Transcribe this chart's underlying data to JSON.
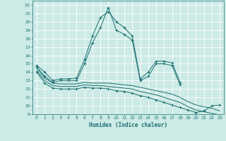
{
  "xlabel": "Humidex (Indice chaleur)",
  "xlim": [
    -0.5,
    23.5
  ],
  "ylim": [
    9,
    22.5
  ],
  "yticks": [
    9,
    10,
    11,
    12,
    13,
    14,
    15,
    16,
    17,
    18,
    19,
    20,
    21,
    22
  ],
  "xticks": [
    0,
    1,
    2,
    3,
    4,
    5,
    6,
    7,
    8,
    9,
    10,
    11,
    12,
    13,
    14,
    15,
    16,
    17,
    18,
    19,
    20,
    21,
    22,
    23
  ],
  "background_color": "#cceae6",
  "grid_color": "#ffffff",
  "line_color": "#1a7070",
  "series": [
    {
      "x": [
        0,
        1,
        2,
        3,
        4,
        5,
        6,
        7,
        8,
        9,
        10,
        11,
        12,
        13,
        14,
        15,
        16,
        17,
        18
      ],
      "y": [
        14.8,
        14.0,
        13.0,
        13.2,
        13.2,
        13.3,
        15.5,
        18.3,
        20.5,
        21.2,
        20.0,
        19.3,
        18.3,
        13.2,
        14.0,
        15.3,
        15.3,
        15.1,
        12.8
      ],
      "marker": "+"
    },
    {
      "x": [
        0,
        1,
        2,
        3,
        4,
        5,
        6,
        7,
        8,
        9,
        10,
        11,
        12,
        13,
        14,
        15,
        16,
        17,
        18
      ],
      "y": [
        14.6,
        13.5,
        12.8,
        13.0,
        13.0,
        13.0,
        15.0,
        17.5,
        19.3,
        21.7,
        19.0,
        18.5,
        17.8,
        13.0,
        13.5,
        15.0,
        15.0,
        14.8,
        12.5
      ],
      "marker": "+"
    },
    {
      "x": [
        0,
        1,
        2,
        3,
        4,
        5,
        6,
        7,
        8,
        9,
        10,
        11,
        12,
        13,
        14,
        15,
        16,
        17,
        18,
        19,
        20,
        21,
        22,
        23
      ],
      "y": [
        14.5,
        13.3,
        12.7,
        12.6,
        12.6,
        12.6,
        12.8,
        12.7,
        12.7,
        12.7,
        12.6,
        12.5,
        12.4,
        12.2,
        12.0,
        11.8,
        11.6,
        11.4,
        11.0,
        10.5,
        10.1,
        9.9,
        9.7,
        9.4
      ],
      "marker": null
    },
    {
      "x": [
        0,
        1,
        2,
        3,
        4,
        5,
        6,
        7,
        8,
        9,
        10,
        11,
        12,
        13,
        14,
        15,
        16,
        17,
        18,
        19,
        20,
        21,
        22,
        23
      ],
      "y": [
        14.2,
        13.0,
        12.4,
        12.3,
        12.3,
        12.3,
        12.5,
        12.4,
        12.4,
        12.3,
        12.2,
        12.1,
        12.0,
        11.7,
        11.5,
        11.3,
        11.0,
        10.7,
        10.4,
        9.9,
        9.5,
        9.3,
        9.1,
        8.9
      ],
      "marker": null
    },
    {
      "x": [
        0,
        1,
        2,
        3,
        4,
        5,
        6,
        7,
        8,
        9,
        10,
        11,
        12,
        13,
        14,
        15,
        16,
        17,
        18,
        19,
        20,
        21,
        22,
        23
      ],
      "y": [
        14.0,
        12.7,
        12.1,
        12.0,
        12.0,
        12.0,
        12.2,
        12.1,
        12.1,
        12.0,
        11.8,
        11.7,
        11.5,
        11.2,
        11.0,
        10.7,
        10.4,
        10.1,
        9.8,
        9.5,
        9.2,
        9.4,
        10.0,
        10.1
      ],
      "marker": "+"
    }
  ]
}
